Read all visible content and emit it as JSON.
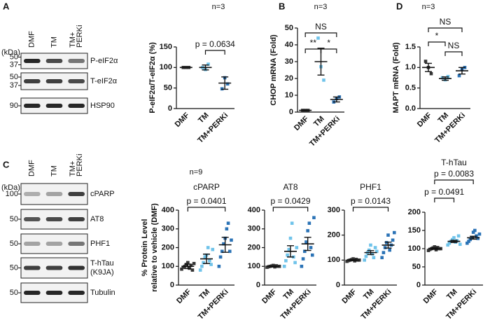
{
  "panels": [
    "A",
    "B",
    "C",
    "D"
  ],
  "blots": [
    {
      "kda": "(kDa)",
      "lanes": [
        [
          "DMF"
        ],
        [
          "TM"
        ],
        [
          "TM+",
          "PERKi"
        ]
      ],
      "rows": [
        {
          "markers": [
            "50",
            "37"
          ],
          "label": [
            "P-eIF2α"
          ]
        },
        {
          "markers": [
            "50",
            "37"
          ],
          "label": [
            "T-eIF2α"
          ]
        },
        {
          "markers": [
            "90"
          ],
          "label": [
            "HSP90"
          ]
        }
      ]
    },
    {
      "kda": "(kDa)",
      "lanes": [
        [
          "DMF"
        ],
        [
          "TM"
        ],
        [
          "TM+",
          "PERKi"
        ]
      ],
      "rows": [
        {
          "markers": [
            "100"
          ],
          "label": [
            "cPARP"
          ]
        },
        {
          "markers": [
            "50"
          ],
          "label": [
            "AT8"
          ]
        },
        {
          "markers": [
            "50"
          ],
          "label": [
            "PHF1"
          ]
        },
        {
          "markers": [
            "50"
          ],
          "label": [
            "T-hTau",
            "(K9JA)"
          ]
        },
        {
          "markers": [
            "50"
          ],
          "label": [
            "Tubulin"
          ]
        }
      ]
    }
  ],
  "chart_data": [
    {
      "type": "dot",
      "n_label": "n=3",
      "ylabel": [
        "P-eIF2α/T-eIF2α (%)"
      ],
      "categories": [
        "DMF",
        "TM",
        "TM+PERKi"
      ],
      "colors": [
        "#333333",
        "#6fc3ea",
        "#2b73b6"
      ],
      "points": [
        [
          100,
          100,
          100
        ],
        [
          100,
          95,
          108
        ],
        [
          48,
          75,
          60
        ]
      ],
      "means": [
        100,
        100,
        62
      ],
      "sems": [
        0,
        6,
        15
      ],
      "ylim": [
        0,
        150
      ],
      "yticks": [
        0,
        50,
        100,
        150
      ],
      "annotations": [
        {
          "text": "p = 0.0634",
          "from": 1,
          "to": 2
        }
      ]
    },
    {
      "type": "dot",
      "n_label": "n=3",
      "ylabel": [
        "CHOP mRNA (Fold)"
      ],
      "categories": [
        "DMF",
        "TM",
        "TM+PERKi"
      ],
      "colors": [
        "#333333",
        "#6fc3ea",
        "#2b73b6"
      ],
      "points": [
        [
          1,
          1,
          1
        ],
        [
          44,
          27,
          19
        ],
        [
          6,
          8,
          9
        ]
      ],
      "means": [
        1,
        30,
        7.5
      ],
      "sems": [
        0.2,
        8,
        1.5
      ],
      "ylim": [
        0,
        50
      ],
      "yticks": [
        0,
        10,
        20,
        30,
        40,
        50
      ],
      "annotations": [
        {
          "text": "**",
          "from": 0,
          "to": 1
        },
        {
          "text": "*",
          "from": 1,
          "to": 2
        },
        {
          "text": "NS",
          "from": 0,
          "to": 2
        }
      ]
    },
    {
      "type": "dot",
      "n_label": "n=3",
      "ylabel": [
        "MAPT mRNA (Fold)"
      ],
      "categories": [
        "DMF",
        "TM",
        "TM+PERKi"
      ],
      "colors": [
        "#333333",
        "#6fc3ea",
        "#2b73b6"
      ],
      "points": [
        [
          1.15,
          1.0,
          0.85
        ],
        [
          0.75,
          0.7,
          0.78
        ],
        [
          0.8,
          0.95,
          1.0
        ]
      ],
      "means": [
        1.0,
        0.73,
        0.92
      ],
      "sems": [
        0.1,
        0.04,
        0.08
      ],
      "ylim": [
        0,
        1.5
      ],
      "yticks": [
        {
          "value": 0,
          "label": "0.0"
        },
        0.5,
        {
          "value": 1,
          "label": "1.0"
        },
        1.5
      ],
      "annotations": [
        {
          "text": "*",
          "from": 0,
          "to": 1
        },
        {
          "text": "NS",
          "from": 1,
          "to": 2
        },
        {
          "text": "NS",
          "from": 0,
          "to": 2
        }
      ]
    },
    {
      "type": "dot",
      "n_label": "n=9",
      "title": "cPARP",
      "ylabel": [
        "% Protein Level",
        "relative to vehicle (DMF)"
      ],
      "categories": [
        "DMF",
        "TM",
        "TM+PERKi"
      ],
      "colors": [
        "#333333",
        "#6fc3ea",
        "#2b73b6"
      ],
      "points": [
        [
          85,
          95,
          100,
          110,
          120,
          90,
          105,
          80,
          115
        ],
        [
          80,
          100,
          120,
          150,
          160,
          200,
          130,
          110,
          190
        ],
        [
          100,
          150,
          180,
          220,
          250,
          300,
          330,
          180,
          240
        ]
      ],
      "means": [
        100,
        140,
        215
      ],
      "sems": [
        12,
        25,
        40
      ],
      "ylim": [
        0,
        400
      ],
      "yticks": [
        0,
        100,
        200,
        300,
        400
      ],
      "annotations": [
        {
          "text": "p = 0.0401",
          "from": 0,
          "to": 2
        }
      ]
    },
    {
      "type": "dot",
      "title": "AT8",
      "categories": [
        "DMF",
        "TM",
        "TM+PERKi"
      ],
      "colors": [
        "#333333",
        "#6fc3ea",
        "#2b73b6"
      ],
      "points": [
        [
          95,
          98,
          100,
          102,
          105,
          97,
          103,
          100,
          100
        ],
        [
          100,
          130,
          160,
          190,
          250,
          330,
          150,
          120,
          200
        ],
        [
          100,
          140,
          180,
          230,
          290,
          330,
          200,
          160,
          360
        ]
      ],
      "means": [
        100,
        180,
        220
      ],
      "sems": [
        2,
        30,
        35
      ],
      "ylim": [
        0,
        400
      ],
      "yticks": [
        0,
        100,
        200,
        300,
        400
      ],
      "annotations": [
        {
          "text": "p = 0.0429",
          "from": 0,
          "to": 2
        }
      ]
    },
    {
      "type": "dot",
      "title": "PHF1",
      "categories": [
        "DMF",
        "TM",
        "TM+PERKi"
      ],
      "colors": [
        "#333333",
        "#6fc3ea",
        "#2b73b6"
      ],
      "points": [
        [
          95,
          98,
          100,
          102,
          105,
          97,
          103,
          100,
          100
        ],
        [
          100,
          115,
          130,
          140,
          160,
          125,
          110,
          150,
          135
        ],
        [
          110,
          130,
          150,
          170,
          200,
          140,
          160,
          180,
          210
        ]
      ],
      "means": [
        100,
        130,
        160
      ],
      "sems": [
        2,
        8,
        12
      ],
      "ylim": [
        0,
        300
      ],
      "yticks": [
        0,
        100,
        200,
        300
      ],
      "annotations": [
        {
          "text": "p = 0.0143",
          "from": 0,
          "to": 2
        }
      ]
    },
    {
      "type": "dot",
      "title": "T-hTau",
      "categories": [
        "DMF",
        "TM",
        "TM+PERKi"
      ],
      "colors": [
        "#333333",
        "#6fc3ea",
        "#2b73b6"
      ],
      "points": [
        [
          95,
          98,
          100,
          102,
          105,
          97,
          103,
          100,
          100
        ],
        [
          110,
          115,
          120,
          125,
          130,
          118,
          122,
          135,
          112
        ],
        [
          115,
          120,
          125,
          130,
          145,
          150,
          135,
          128,
          140
        ]
      ],
      "means": [
        100,
        120,
        130
      ],
      "sems": [
        2,
        3,
        4
      ],
      "ylim": [
        0,
        200
      ],
      "yticks": [
        0,
        50,
        100,
        150,
        200
      ],
      "annotations": [
        {
          "text": "p = 0.0491",
          "from": 0,
          "to": 1
        },
        {
          "text": "p = 0.0083",
          "from": 0,
          "to": 2
        }
      ]
    }
  ]
}
